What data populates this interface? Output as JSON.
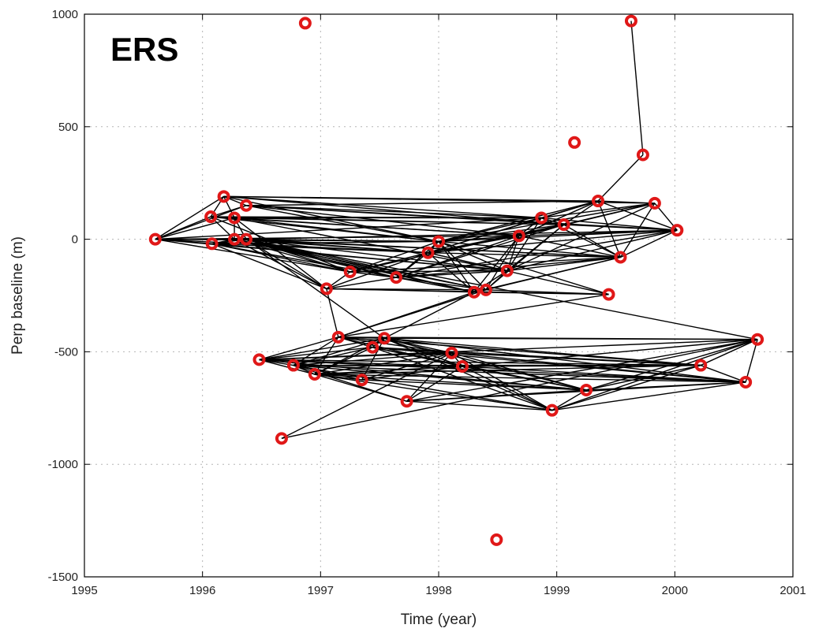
{
  "chart_data": {
    "type": "scatter",
    "panel_label": "ERS",
    "xlabel": "Time (year)",
    "ylabel": "Perp baseline (m)",
    "xlim": [
      1995,
      2001
    ],
    "ylim": [
      -1500,
      1000
    ],
    "xticks": [
      1995,
      1996,
      1997,
      1998,
      1999,
      2000,
      2001
    ],
    "yticks": [
      -1500,
      -1000,
      -500,
      0,
      500,
      1000
    ],
    "grid": true,
    "marker_color": "#e01818",
    "edge_color": "#000000",
    "points": [
      {
        "id": "p01",
        "x": 1995.6,
        "y": 0
      },
      {
        "id": "p02",
        "x": 1996.07,
        "y": 100
      },
      {
        "id": "p03",
        "x": 1996.08,
        "y": -20
      },
      {
        "id": "p04",
        "x": 1996.18,
        "y": 190
      },
      {
        "id": "p05",
        "x": 1996.27,
        "y": 95
      },
      {
        "id": "p06",
        "x": 1996.27,
        "y": 0
      },
      {
        "id": "p07",
        "x": 1996.37,
        "y": 150
      },
      {
        "id": "p08",
        "x": 1996.37,
        "y": 0
      },
      {
        "id": "p09",
        "x": 1996.48,
        "y": -535
      },
      {
        "id": "p10",
        "x": 1996.67,
        "y": -885
      },
      {
        "id": "p11",
        "x": 1996.77,
        "y": -560
      },
      {
        "id": "p12",
        "x": 1996.87,
        "y": 960
      },
      {
        "id": "p13",
        "x": 1996.95,
        "y": -600
      },
      {
        "id": "p14",
        "x": 1997.05,
        "y": -220
      },
      {
        "id": "p15",
        "x": 1997.15,
        "y": -435
      },
      {
        "id": "p16",
        "x": 1997.25,
        "y": -145
      },
      {
        "id": "p17",
        "x": 1997.35,
        "y": -625
      },
      {
        "id": "p18",
        "x": 1997.44,
        "y": -480
      },
      {
        "id": "p19",
        "x": 1997.54,
        "y": -440
      },
      {
        "id": "p20",
        "x": 1997.64,
        "y": -170
      },
      {
        "id": "p21",
        "x": 1997.73,
        "y": -720
      },
      {
        "id": "p22",
        "x": 1997.91,
        "y": -60
      },
      {
        "id": "p23",
        "x": 1998.0,
        "y": -10
      },
      {
        "id": "p24",
        "x": 1998.11,
        "y": -505
      },
      {
        "id": "p25",
        "x": 1998.2,
        "y": -565
      },
      {
        "id": "p26",
        "x": 1998.3,
        "y": -235
      },
      {
        "id": "p27",
        "x": 1998.4,
        "y": -225
      },
      {
        "id": "p28",
        "x": 1998.49,
        "y": -1335
      },
      {
        "id": "p29",
        "x": 1998.58,
        "y": -140
      },
      {
        "id": "p30",
        "x": 1998.68,
        "y": 15
      },
      {
        "id": "p31",
        "x": 1998.87,
        "y": 95
      },
      {
        "id": "p32",
        "x": 1998.96,
        "y": -760
      },
      {
        "id": "p33",
        "x": 1999.06,
        "y": 65
      },
      {
        "id": "p34",
        "x": 1999.15,
        "y": 430
      },
      {
        "id": "p35",
        "x": 1999.25,
        "y": -670
      },
      {
        "id": "p36",
        "x": 1999.35,
        "y": 170
      },
      {
        "id": "p37",
        "x": 1999.44,
        "y": -245
      },
      {
        "id": "p38",
        "x": 1999.54,
        "y": -80
      },
      {
        "id": "p39",
        "x": 1999.63,
        "y": 970
      },
      {
        "id": "p40",
        "x": 1999.73,
        "y": 375
      },
      {
        "id": "p41",
        "x": 1999.83,
        "y": 160
      },
      {
        "id": "p42",
        "x": 2000.02,
        "y": 40
      },
      {
        "id": "p43",
        "x": 2000.22,
        "y": -560
      },
      {
        "id": "p44",
        "x": 2000.6,
        "y": -635
      },
      {
        "id": "p45",
        "x": 2000.7,
        "y": -445
      }
    ],
    "edges": [
      [
        "p01",
        "p02"
      ],
      [
        "p01",
        "p03"
      ],
      [
        "p01",
        "p04"
      ],
      [
        "p01",
        "p05"
      ],
      [
        "p01",
        "p06"
      ],
      [
        "p01",
        "p07"
      ],
      [
        "p01",
        "p08"
      ],
      [
        "p01",
        "p16"
      ],
      [
        "p01",
        "p22"
      ],
      [
        "p01",
        "p23"
      ],
      [
        "p01",
        "p29"
      ],
      [
        "p01",
        "p30"
      ],
      [
        "p01",
        "p31"
      ],
      [
        "p02",
        "p04"
      ],
      [
        "p02",
        "p05"
      ],
      [
        "p02",
        "p06"
      ],
      [
        "p02",
        "p07"
      ],
      [
        "p02",
        "p16"
      ],
      [
        "p02",
        "p23"
      ],
      [
        "p02",
        "p30"
      ],
      [
        "p02",
        "p31"
      ],
      [
        "p02",
        "p33"
      ],
      [
        "p03",
        "p06"
      ],
      [
        "p03",
        "p08"
      ],
      [
        "p03",
        "p14"
      ],
      [
        "p03",
        "p16"
      ],
      [
        "p03",
        "p20"
      ],
      [
        "p03",
        "p22"
      ],
      [
        "p03",
        "p23"
      ],
      [
        "p03",
        "p29"
      ],
      [
        "p04",
        "p05"
      ],
      [
        "p04",
        "p07"
      ],
      [
        "p04",
        "p23"
      ],
      [
        "p04",
        "p31"
      ],
      [
        "p04",
        "p33"
      ],
      [
        "p04",
        "p36"
      ],
      [
        "p04",
        "p41"
      ],
      [
        "p05",
        "p06"
      ],
      [
        "p05",
        "p08"
      ],
      [
        "p05",
        "p14"
      ],
      [
        "p05",
        "p23"
      ],
      [
        "p05",
        "p29"
      ],
      [
        "p05",
        "p30"
      ],
      [
        "p05",
        "p31"
      ],
      [
        "p05",
        "p33"
      ],
      [
        "p06",
        "p08"
      ],
      [
        "p06",
        "p14"
      ],
      [
        "p06",
        "p16"
      ],
      [
        "p06",
        "p20"
      ],
      [
        "p06",
        "p22"
      ],
      [
        "p06",
        "p23"
      ],
      [
        "p06",
        "p26"
      ],
      [
        "p06",
        "p27"
      ],
      [
        "p06",
        "p38"
      ],
      [
        "p07",
        "p23"
      ],
      [
        "p07",
        "p30"
      ],
      [
        "p07",
        "p31"
      ],
      [
        "p07",
        "p33"
      ],
      [
        "p07",
        "p36"
      ],
      [
        "p07",
        "p42"
      ],
      [
        "p08",
        "p14"
      ],
      [
        "p08",
        "p16"
      ],
      [
        "p08",
        "p20"
      ],
      [
        "p08",
        "p22"
      ],
      [
        "p08",
        "p23"
      ],
      [
        "p08",
        "p26"
      ],
      [
        "p08",
        "p27"
      ],
      [
        "p08",
        "p29"
      ],
      [
        "p08",
        "p38"
      ],
      [
        "p08",
        "p42"
      ],
      [
        "p08",
        "p19"
      ],
      [
        "p08",
        "p45"
      ],
      [
        "p14",
        "p16"
      ],
      [
        "p14",
        "p20"
      ],
      [
        "p14",
        "p22"
      ],
      [
        "p14",
        "p26"
      ],
      [
        "p14",
        "p27"
      ],
      [
        "p14",
        "p37"
      ],
      [
        "p16",
        "p20"
      ],
      [
        "p16",
        "p22"
      ],
      [
        "p16",
        "p23"
      ],
      [
        "p16",
        "p29"
      ],
      [
        "p16",
        "p33"
      ],
      [
        "p16",
        "p38"
      ],
      [
        "p20",
        "p22"
      ],
      [
        "p20",
        "p23"
      ],
      [
        "p20",
        "p26"
      ],
      [
        "p20",
        "p27"
      ],
      [
        "p20",
        "p29"
      ],
      [
        "p20",
        "p30"
      ],
      [
        "p20",
        "p33"
      ],
      [
        "p20",
        "p38"
      ],
      [
        "p20",
        "p42"
      ],
      [
        "p22",
        "p23"
      ],
      [
        "p22",
        "p26"
      ],
      [
        "p22",
        "p29"
      ],
      [
        "p22",
        "p30"
      ],
      [
        "p22",
        "p31"
      ],
      [
        "p22",
        "p33"
      ],
      [
        "p22",
        "p38"
      ],
      [
        "p22",
        "p42"
      ],
      [
        "p22",
        "p36"
      ],
      [
        "p23",
        "p26"
      ],
      [
        "p23",
        "p27"
      ],
      [
        "p23",
        "p29"
      ],
      [
        "p23",
        "p30"
      ],
      [
        "p23",
        "p31"
      ],
      [
        "p23",
        "p33"
      ],
      [
        "p23",
        "p36"
      ],
      [
        "p23",
        "p38"
      ],
      [
        "p23",
        "p41"
      ],
      [
        "p23",
        "p42"
      ],
      [
        "p26",
        "p27"
      ],
      [
        "p26",
        "p29"
      ],
      [
        "p26",
        "p30"
      ],
      [
        "p26",
        "p37"
      ],
      [
        "p26",
        "p38"
      ],
      [
        "p27",
        "p29"
      ],
      [
        "p27",
        "p30"
      ],
      [
        "p27",
        "p33"
      ],
      [
        "p27",
        "p37"
      ],
      [
        "p27",
        "p38"
      ],
      [
        "p29",
        "p30"
      ],
      [
        "p29",
        "p31"
      ],
      [
        "p29",
        "p33"
      ],
      [
        "p29",
        "p38"
      ],
      [
        "p29",
        "p41"
      ],
      [
        "p29",
        "p42"
      ],
      [
        "p30",
        "p31"
      ],
      [
        "p30",
        "p33"
      ],
      [
        "p30",
        "p36"
      ],
      [
        "p30",
        "p38"
      ],
      [
        "p30",
        "p41"
      ],
      [
        "p30",
        "p42"
      ],
      [
        "p31",
        "p33"
      ],
      [
        "p31",
        "p36"
      ],
      [
        "p31",
        "p38"
      ],
      [
        "p31",
        "p41"
      ],
      [
        "p31",
        "p42"
      ],
      [
        "p33",
        "p36"
      ],
      [
        "p33",
        "p38"
      ],
      [
        "p33",
        "p41"
      ],
      [
        "p33",
        "p42"
      ],
      [
        "p36",
        "p38"
      ],
      [
        "p36",
        "p40"
      ],
      [
        "p36",
        "p41"
      ],
      [
        "p36",
        "p42"
      ],
      [
        "p38",
        "p41"
      ],
      [
        "p38",
        "p42"
      ],
      [
        "p39",
        "p40"
      ],
      [
        "p41",
        "p42"
      ],
      [
        "p37",
        "p22"
      ],
      [
        "p37",
        "p23"
      ],
      [
        "p14",
        "p15"
      ],
      [
        "p15",
        "p19"
      ],
      [
        "p19",
        "p26"
      ],
      [
        "p15",
        "p26"
      ],
      [
        "p15",
        "p27"
      ],
      [
        "p15",
        "p37"
      ],
      [
        "p09",
        "p11"
      ],
      [
        "p09",
        "p13"
      ],
      [
        "p09",
        "p15"
      ],
      [
        "p09",
        "p18"
      ],
      [
        "p09",
        "p19"
      ],
      [
        "p09",
        "p24"
      ],
      [
        "p09",
        "p25"
      ],
      [
        "p09",
        "p35"
      ],
      [
        "p09",
        "p43"
      ],
      [
        "p09",
        "p44"
      ],
      [
        "p09",
        "p45"
      ],
      [
        "p10",
        "p24"
      ],
      [
        "p10",
        "p45"
      ],
      [
        "p11",
        "p13"
      ],
      [
        "p11",
        "p15"
      ],
      [
        "p11",
        "p17"
      ],
      [
        "p11",
        "p18"
      ],
      [
        "p11",
        "p19"
      ],
      [
        "p11",
        "p21"
      ],
      [
        "p11",
        "p24"
      ],
      [
        "p11",
        "p25"
      ],
      [
        "p11",
        "p32"
      ],
      [
        "p11",
        "p35"
      ],
      [
        "p11",
        "p43"
      ],
      [
        "p11",
        "p44"
      ],
      [
        "p13",
        "p15"
      ],
      [
        "p13",
        "p17"
      ],
      [
        "p13",
        "p18"
      ],
      [
        "p13",
        "p19"
      ],
      [
        "p13",
        "p21"
      ],
      [
        "p13",
        "p24"
      ],
      [
        "p13",
        "p25"
      ],
      [
        "p13",
        "p32"
      ],
      [
        "p13",
        "p35"
      ],
      [
        "p13",
        "p43"
      ],
      [
        "p13",
        "p44"
      ],
      [
        "p15",
        "p18"
      ],
      [
        "p15",
        "p24"
      ],
      [
        "p15",
        "p25"
      ],
      [
        "p15",
        "p43"
      ],
      [
        "p15",
        "p45"
      ],
      [
        "p17",
        "p19"
      ],
      [
        "p17",
        "p24"
      ],
      [
        "p17",
        "p25"
      ],
      [
        "p17",
        "p35"
      ],
      [
        "p18",
        "p19"
      ],
      [
        "p18",
        "p24"
      ],
      [
        "p18",
        "p25"
      ],
      [
        "p18",
        "p32"
      ],
      [
        "p18",
        "p35"
      ],
      [
        "p18",
        "p43"
      ],
      [
        "p18",
        "p44"
      ],
      [
        "p19",
        "p24"
      ],
      [
        "p19",
        "p25"
      ],
      [
        "p19",
        "p32"
      ],
      [
        "p19",
        "p35"
      ],
      [
        "p19",
        "p43"
      ],
      [
        "p19",
        "p44"
      ],
      [
        "p19",
        "p45"
      ],
      [
        "p21",
        "p24"
      ],
      [
        "p21",
        "p25"
      ],
      [
        "p21",
        "p32"
      ],
      [
        "p21",
        "p35"
      ],
      [
        "p21",
        "p44"
      ],
      [
        "p21",
        "p45"
      ],
      [
        "p24",
        "p25"
      ],
      [
        "p24",
        "p32"
      ],
      [
        "p24",
        "p35"
      ],
      [
        "p24",
        "p43"
      ],
      [
        "p24",
        "p44"
      ],
      [
        "p25",
        "p32"
      ],
      [
        "p25",
        "p35"
      ],
      [
        "p25",
        "p43"
      ],
      [
        "p25",
        "p44"
      ],
      [
        "p25",
        "p45"
      ],
      [
        "p32",
        "p35"
      ],
      [
        "p32",
        "p43"
      ],
      [
        "p32",
        "p44"
      ],
      [
        "p32",
        "p45"
      ],
      [
        "p35",
        "p43"
      ],
      [
        "p35",
        "p44"
      ],
      [
        "p35",
        "p45"
      ],
      [
        "p43",
        "p44"
      ],
      [
        "p43",
        "p45"
      ],
      [
        "p44",
        "p45"
      ]
    ]
  }
}
